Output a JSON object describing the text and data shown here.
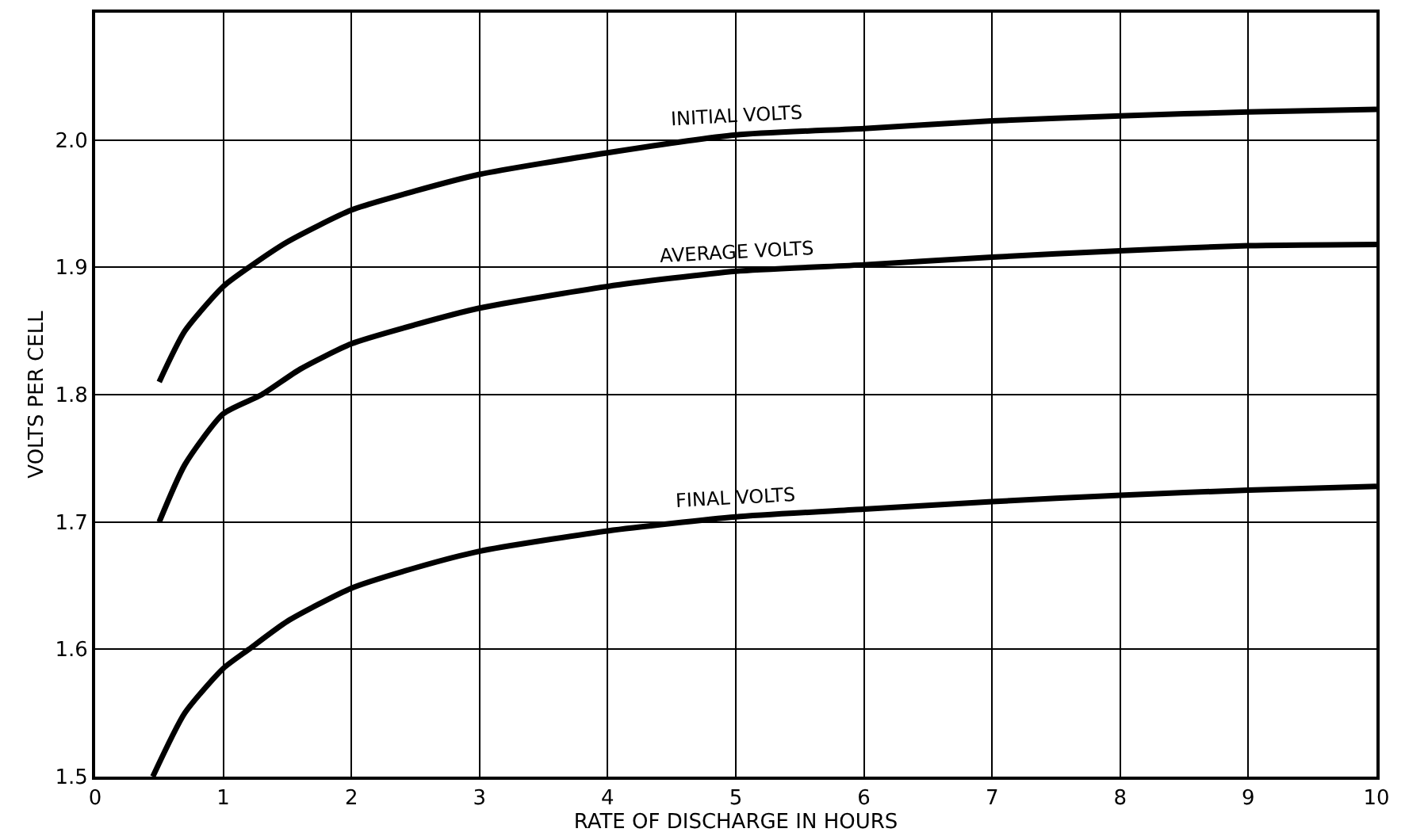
{
  "chart_data": {
    "type": "line",
    "xlabel": "RATE OF DISCHARGE IN HOURS",
    "ylabel": "VOLTS PER CELL",
    "xlim": [
      0,
      10
    ],
    "ylim": [
      1.5,
      2.1
    ],
    "xticks": [
      0,
      1,
      2,
      3,
      4,
      5,
      6,
      7,
      8,
      9,
      10
    ],
    "yticks": [
      1.5,
      1.6,
      1.7,
      1.8,
      1.9,
      {
        "value": 2.0,
        "label": "2.0"
      }
    ],
    "grid": true,
    "legend": false,
    "marker": "none",
    "line_style": "solid",
    "series": [
      {
        "name": "INITIAL VOLTS",
        "color": "#000000",
        "x": [
          0.5,
          0.7,
          1,
          1.2,
          1.5,
          2,
          2.5,
          3,
          4,
          5,
          6,
          7,
          8,
          9,
          10
        ],
        "values": [
          1.81,
          1.85,
          1.885,
          1.9,
          1.92,
          1.945,
          1.96,
          1.973,
          1.99,
          2.004,
          2.009,
          2.015,
          2.019,
          2.022,
          2.024
        ]
      },
      {
        "name": "AVERAGE VOLTS",
        "color": "#000000",
        "x": [
          0.5,
          0.7,
          1,
          1.3,
          1.6,
          2,
          2.5,
          3,
          4,
          5,
          6,
          7,
          8,
          9,
          10
        ],
        "values": [
          1.7,
          1.745,
          1.785,
          1.8,
          1.82,
          1.84,
          1.855,
          1.868,
          1.885,
          1.897,
          1.902,
          1.908,
          1.913,
          1.917,
          1.918
        ]
      },
      {
        "name": "FINAL VOLTS",
        "color": "#000000",
        "x": [
          0.45,
          0.7,
          1,
          1.2,
          1.5,
          2,
          2.5,
          3,
          4,
          5,
          6,
          7,
          8,
          9,
          10
        ],
        "values": [
          1.5,
          1.55,
          1.585,
          1.6,
          1.622,
          1.648,
          1.664,
          1.677,
          1.693,
          1.704,
          1.71,
          1.716,
          1.721,
          1.725,
          1.728
        ]
      }
    ]
  }
}
